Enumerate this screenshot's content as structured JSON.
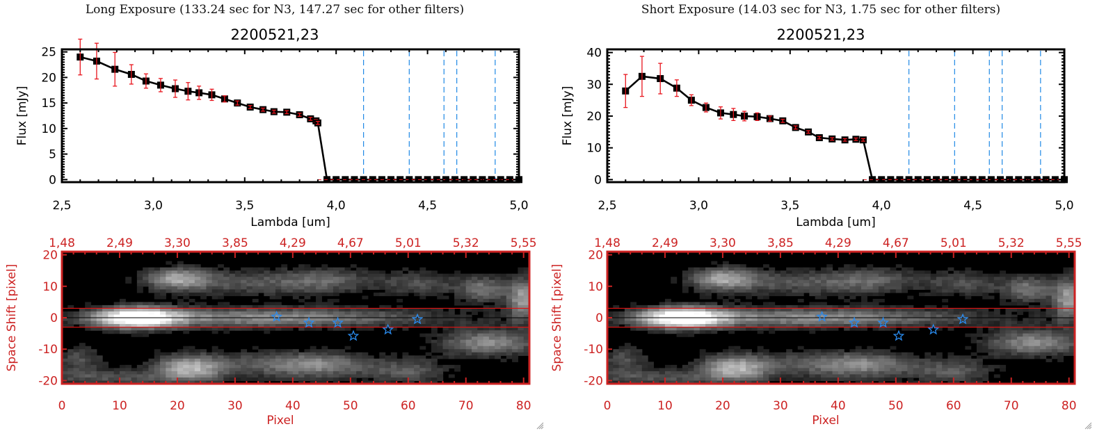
{
  "panels": [
    {
      "exposure_title": "Long Exposure (133.24 sec for N3, 147.27 sec for other filters)",
      "object_title": "2200521,23"
    },
    {
      "exposure_title": "Short Exposure (14.03 sec for N3, 1.75 sec for other filters)",
      "object_title": "2200521,23"
    }
  ],
  "colors": {
    "spectrum_line": "#000000",
    "error_bar": "#e8141c",
    "filter_line": "#1e88e5",
    "image_axis": "#cc2222",
    "star_marker": "#2a8cf0",
    "zero_line": "#e8141c"
  },
  "chart_data": [
    {
      "type": "line",
      "panel": "left-spectrum",
      "title": "2200521,23",
      "xlabel": "Lambda [um]",
      "ylabel": "Flux [mJy]",
      "xlim": [
        2.5,
        5.0
      ],
      "ylim": [
        -0.5,
        25.5
      ],
      "xticks": [
        "2,5",
        "3,0",
        "3,5",
        "4,0",
        "4,5",
        "5,0"
      ],
      "xtick_values": [
        2.5,
        3.0,
        3.5,
        4.0,
        4.5,
        5.0
      ],
      "yticks": [
        "0",
        "5",
        "10",
        "15",
        "20",
        "25"
      ],
      "ytick_values": [
        0,
        5,
        10,
        15,
        20,
        25
      ],
      "filter_lines": [
        4.15,
        4.4,
        4.59,
        4.66,
        4.87
      ],
      "x": [
        2.6,
        2.69,
        2.79,
        2.88,
        2.96,
        3.04,
        3.12,
        3.19,
        3.25,
        3.32,
        3.39,
        3.46,
        3.53,
        3.6,
        3.66,
        3.73,
        3.8,
        3.86,
        3.89,
        3.9,
        3.95,
        4.0,
        4.05,
        4.1,
        4.15,
        4.2,
        4.25,
        4.3,
        4.35,
        4.4,
        4.45,
        4.5,
        4.55,
        4.6,
        4.65,
        4.7,
        4.75,
        4.8,
        4.85,
        4.9,
        4.95,
        5.0
      ],
      "y": [
        24.0,
        23.2,
        21.6,
        20.6,
        19.3,
        18.5,
        17.8,
        17.3,
        17.0,
        16.6,
        15.8,
        15.0,
        14.2,
        13.7,
        13.3,
        13.2,
        12.7,
        11.9,
        11.5,
        11.1,
        0,
        0,
        0,
        0,
        0,
        0,
        0,
        0,
        0,
        0,
        0,
        0,
        0,
        0,
        0,
        0,
        0,
        0,
        0,
        0,
        0,
        0
      ],
      "yerr": [
        3.5,
        3.5,
        3.3,
        1.9,
        1.4,
        1.3,
        1.7,
        1.7,
        1.3,
        1.1,
        0.6,
        0.4,
        0.3,
        0.3,
        0.3,
        0.3,
        0.3,
        0.3,
        0.3,
        0.3,
        0,
        0,
        0,
        0,
        0,
        0,
        0,
        0,
        0,
        0,
        0,
        0,
        0,
        0,
        0,
        0,
        0,
        0,
        0,
        0,
        0,
        0
      ]
    },
    {
      "type": "line",
      "panel": "right-spectrum",
      "title": "2200521,23",
      "xlabel": "Lambda [um]",
      "ylabel": "Flux [mJy]",
      "xlim": [
        2.5,
        5.0
      ],
      "ylim": [
        -0.8,
        41
      ],
      "xticks": [
        "2,5",
        "3,0",
        "3,5",
        "4,0",
        "4,5",
        "5,0"
      ],
      "xtick_values": [
        2.5,
        3.0,
        3.5,
        4.0,
        4.5,
        5.0
      ],
      "yticks": [
        "0",
        "10",
        "20",
        "30",
        "40"
      ],
      "ytick_values": [
        0,
        10,
        20,
        30,
        40
      ],
      "filter_lines": [
        4.15,
        4.4,
        4.59,
        4.66,
        4.87
      ],
      "x": [
        2.6,
        2.69,
        2.79,
        2.88,
        2.96,
        3.04,
        3.12,
        3.19,
        3.25,
        3.32,
        3.39,
        3.46,
        3.53,
        3.6,
        3.66,
        3.73,
        3.8,
        3.86,
        3.9,
        3.95,
        4.0,
        4.05,
        4.1,
        4.15,
        4.2,
        4.25,
        4.3,
        4.35,
        4.4,
        4.45,
        4.5,
        4.55,
        4.6,
        4.65,
        4.7,
        4.75,
        4.8,
        4.85,
        4.9,
        4.95,
        5.0
      ],
      "y": [
        27.9,
        32.5,
        31.8,
        28.8,
        25.0,
        22.7,
        21.0,
        20.5,
        20.0,
        19.8,
        19.2,
        18.5,
        16.4,
        15.0,
        13.2,
        12.8,
        12.5,
        12.7,
        12.5,
        0,
        0,
        0,
        0,
        0,
        0,
        0,
        0,
        0,
        0,
        0,
        0,
        0,
        0,
        0,
        0,
        0,
        0,
        0,
        0,
        0,
        0
      ],
      "yerr": [
        5.2,
        6.3,
        4.8,
        2.6,
        1.7,
        1.4,
        1.9,
        1.9,
        1.5,
        1.2,
        0.8,
        0.5,
        0.5,
        0.4,
        0.4,
        0.4,
        0.4,
        0.4,
        0.4,
        0,
        0,
        0,
        0,
        0,
        0,
        0,
        0,
        0,
        0,
        0,
        0,
        0,
        0,
        0,
        0,
        0,
        0,
        0,
        0,
        0,
        0
      ]
    },
    {
      "type": "heatmap",
      "panel": "left-image",
      "xlabel": "Pixel",
      "ylabel": "Space Shift [pixel]",
      "xlim": [
        0,
        81
      ],
      "ylim": [
        -21,
        21
      ],
      "xticks": [
        "0",
        "10",
        "20",
        "30",
        "40",
        "50",
        "60",
        "70",
        "80"
      ],
      "xtick_values": [
        0,
        10,
        20,
        30,
        40,
        50,
        60,
        70,
        80
      ],
      "top_xticks": [
        "1,48",
        "2,49",
        "3,30",
        "3,85",
        "4,29",
        "4,67",
        "5,01",
        "5,32",
        "5,55"
      ],
      "yticks": [
        "-20",
        "-10",
        "0",
        "10",
        "20"
      ],
      "ytick_values": [
        -20,
        -10,
        0,
        10,
        20
      ],
      "aperture_lines": [
        3,
        -3
      ],
      "center_line": 0,
      "stars": [
        {
          "x": 37.2,
          "y": 0.3,
          "filled": false
        },
        {
          "x": 42.8,
          "y": -1.6,
          "filled": false
        },
        {
          "x": 47.8,
          "y": -1.6,
          "filled": false
        },
        {
          "x": 50.5,
          "y": -5.8,
          "filled": false
        },
        {
          "x": 56.5,
          "y": -3.8,
          "filled": true
        },
        {
          "x": 61.6,
          "y": -0.5,
          "filled": false
        }
      ]
    },
    {
      "type": "heatmap",
      "panel": "right-image",
      "xlabel": "Pixel",
      "ylabel": "Space Shift [pixel]",
      "xlim": [
        0,
        81
      ],
      "ylim": [
        -21,
        21
      ],
      "xticks": [
        "0",
        "10",
        "20",
        "30",
        "40",
        "50",
        "60",
        "70",
        "80"
      ],
      "xtick_values": [
        0,
        10,
        20,
        30,
        40,
        50,
        60,
        70,
        80
      ],
      "top_xticks": [
        "1,48",
        "2,49",
        "3,30",
        "3,85",
        "4,29",
        "4,67",
        "5,01",
        "5,32",
        "5,55"
      ],
      "yticks": [
        "-20",
        "-10",
        "0",
        "10",
        "20"
      ],
      "ytick_values": [
        -20,
        -10,
        0,
        10,
        20
      ],
      "aperture_lines": [
        3,
        -3
      ],
      "center_line": 0,
      "stars": [
        {
          "x": 37.2,
          "y": 0.3,
          "filled": false
        },
        {
          "x": 42.8,
          "y": -1.6,
          "filled": false
        },
        {
          "x": 47.8,
          "y": -1.6,
          "filled": false
        },
        {
          "x": 50.5,
          "y": -5.8,
          "filled": false
        },
        {
          "x": 56.5,
          "y": -3.8,
          "filled": true
        },
        {
          "x": 61.6,
          "y": -0.5,
          "filled": false
        }
      ]
    }
  ]
}
